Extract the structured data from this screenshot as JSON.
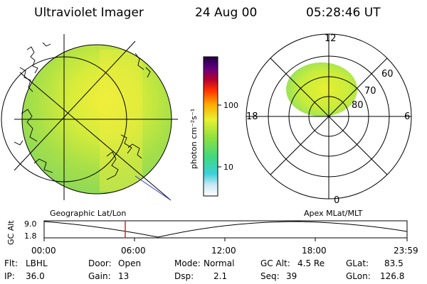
{
  "header": {
    "instrument": "Ultraviolet Imager",
    "date": "24 Aug 00",
    "time": "05:28:46 UT"
  },
  "colorbar": {
    "unit_label": "photon cm⁻²s⁻¹",
    "ticks": [
      "100",
      "10"
    ]
  },
  "polar_plot": {
    "mlt_labels": [
      "12",
      "18",
      "6",
      "0"
    ],
    "mlat_labels": [
      "60",
      "70",
      "80"
    ]
  },
  "panel_labels": {
    "left": "Geographic Lat/Lon",
    "right": "Apex MLat/MLT"
  },
  "altitude_plot": {
    "ylabel": "GC Alt",
    "y_ticks": [
      "9.0",
      "1.8"
    ],
    "x_ticks": [
      "00:00",
      "06:00",
      "12:00",
      "18:00",
      "23:59"
    ]
  },
  "info": {
    "row1": [
      {
        "label": "Flt:",
        "value": "LBHL"
      },
      {
        "label": "Door:",
        "value": "Open"
      },
      {
        "label": "Mode:",
        "value": "Normal"
      },
      {
        "label": "GC Alt:",
        "value": "4.5 Re"
      },
      {
        "label": "GLat:",
        "value": "83.5"
      }
    ],
    "row2": [
      {
        "label": "IP:",
        "value": "36.0"
      },
      {
        "label": "Gain:",
        "value": "13"
      },
      {
        "label": "Dsp:",
        "value": "2.1"
      },
      {
        "label": "Seq:",
        "value": "39"
      },
      {
        "label": "GLon:",
        "value": "126.8"
      }
    ]
  }
}
